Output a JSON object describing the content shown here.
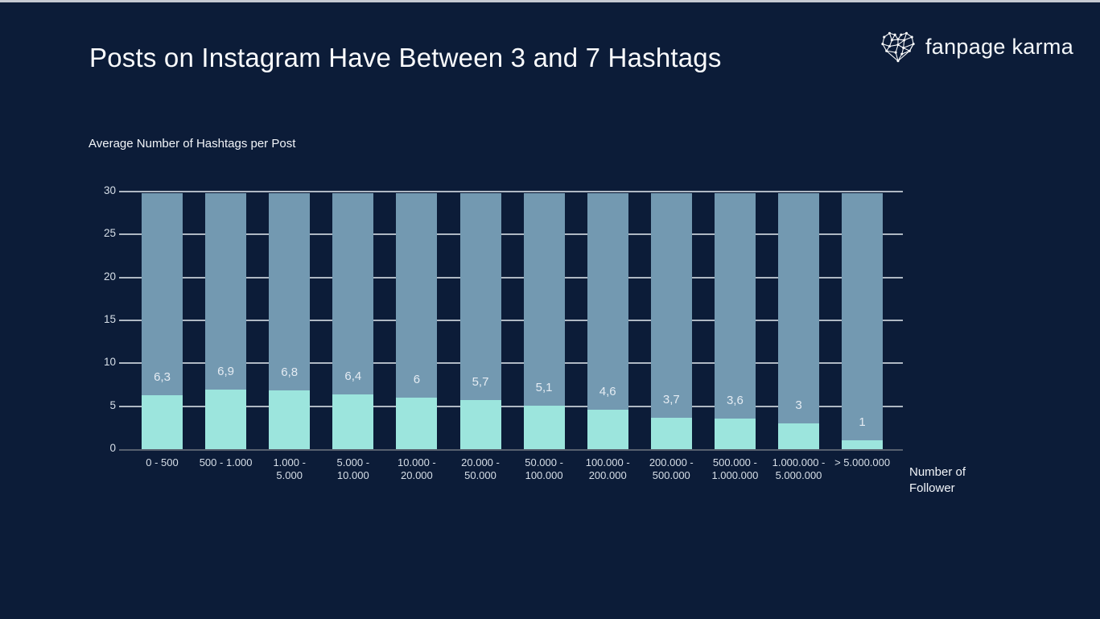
{
  "page": {
    "colors": {
      "background": "#0c1c38",
      "top_strip": "#c6cad2",
      "bar_remainder": "#7399b1",
      "bar_value": "#9ce5dd",
      "gridline": "#ccd4dc",
      "zero_line": "#57606e",
      "tick_text": "#d7dfe8",
      "title_text": "#fafbfd"
    }
  },
  "header": {
    "logo_text": "fanpage karma",
    "logo_icon": "polygon-mesh-heart-icon"
  },
  "chart_data": {
    "type": "bar",
    "title": "Posts on Instagram Have Between 3 and 7 Hashtags",
    "ylabel": "Average Number of Hashtags per Post",
    "xlabel": "Number of Follower",
    "ylim": [
      0,
      30
    ],
    "yticks": [
      0,
      5,
      10,
      15,
      20,
      25,
      30
    ],
    "grid": true,
    "legend_position": "none",
    "bar_total": 30,
    "categories": [
      "0 - 500",
      "500 - 1.000",
      "1.000 - 5.000",
      "5.000 - 10.000",
      "10.000 - 20.000",
      "20.000 - 50.000",
      "50.000 - 100.000",
      "100.000 - 200.000",
      "200.000 - 500.000",
      "500.000 - 1.000.000",
      "1.000.000 - 5.000.000",
      "> 5.000.000"
    ],
    "category_label_lines": [
      [
        "0 - 500"
      ],
      [
        "500 - 1.000"
      ],
      [
        "1.000 -",
        "5.000"
      ],
      [
        "5.000 -",
        "10.000"
      ],
      [
        "10.000 -",
        "20.000"
      ],
      [
        "20.000 -",
        "50.000"
      ],
      [
        "50.000 -",
        "100.000"
      ],
      [
        "100.000 -",
        "200.000"
      ],
      [
        "200.000 -",
        "500.000"
      ],
      [
        "500.000 -",
        "1.000.000"
      ],
      [
        "1.000.000 -",
        "5.000.000"
      ],
      [
        "> 5.000.000"
      ]
    ],
    "values": [
      6.3,
      6.9,
      6.8,
      6.4,
      6,
      5.7,
      5.1,
      4.6,
      3.7,
      3.6,
      3,
      1
    ],
    "value_labels": [
      "6,3",
      "6,9",
      "6,8",
      "6,4",
      "6",
      "5,7",
      "5,1",
      "4,6",
      "3,7",
      "3,6",
      "3",
      "1"
    ]
  }
}
